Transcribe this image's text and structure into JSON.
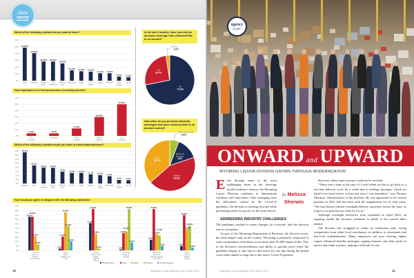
{
  "left_page": {
    "badge": {
      "line1": "data",
      "line2": "CENTER"
    },
    "footer": "StateWays | www.stateways.com | Winter 2022",
    "page_number": "10"
  },
  "colors": {
    "navy": "#1c2a4f",
    "red": "#c8202f",
    "gold": "#f0a818",
    "green": "#a6c43a",
    "teal": "#3aa7c8",
    "highlight": "#f6ea52"
  },
  "chart_data": [
    {
      "id": "c1",
      "type": "bar",
      "title": "Which of the following cocktails do you make at home?",
      "categories": [
        "Other",
        "Margarita",
        "Bloody Mary",
        "Old Fashioned",
        "Whiskey Sour",
        "Manhattan",
        "Mojito",
        "Dry Martini",
        "Daiquiri",
        "Mudslide",
        "Piña Colada",
        "Mai Tai"
      ],
      "values": [
        48.8,
        40.6,
        28.3,
        28.3,
        25.5,
        15.2,
        14.0,
        13.4,
        11.0,
        11.0,
        6.1,
        5.1
      ],
      "labels": [
        "48.80%",
        "40.60%",
        "28.30%",
        "28.30%",
        "25.50%",
        "15.20%",
        "14.00%",
        "13.40%",
        "11.00%",
        "11.00%",
        "6.10%",
        "5.10%"
      ],
      "ylim": [
        0,
        60
      ],
      "ytick_step": 10,
      "yticks": [
        "0%",
        "10%",
        "20%",
        "30%",
        "40%",
        "50%",
        "60%"
      ],
      "color": "#1c2a4f",
      "grid": true
    },
    {
      "id": "c2",
      "type": "bar",
      "title": "How important is it to feel buzzed when consuming alcohol?",
      "categories": [
        "Very Important",
        "Important",
        "Fairly Important",
        "Slightly Important",
        "Not Important"
      ],
      "values": [
        4.0,
        4.0,
        11.8,
        29.8,
        50.0
      ],
      "labels": [
        "4.00%",
        "4.00%",
        "11.80%",
        "29.80%",
        "50.00%"
      ],
      "ylim": [
        0,
        60
      ],
      "ytick_step": 10,
      "yticks": [
        "0%",
        "10%",
        "20%",
        "30%",
        "40%",
        "50%",
        "60%"
      ],
      "color": "#c8202f",
      "grid": true
    },
    {
      "id": "c3",
      "type": "bar",
      "title": "Which of the following cocktails would you order at a bar/restaurant/venue?",
      "categories": [
        "Margarita",
        "Other",
        "Old Fashioned",
        "Bloody Mary",
        "Whiskey Sour",
        "Martini",
        "Mojito",
        "Daiquiri",
        "Piña Colada",
        "Manhattan",
        "Dry Martini",
        "Mai Tai"
      ],
      "values": [
        38.5,
        22.3,
        19.6,
        19.4,
        14.6,
        13.0,
        13.0,
        11.3,
        10.3,
        9.0,
        4.3,
        4.0
      ],
      "labels": [
        "38.5%",
        "22.3%",
        "19.6%",
        "19.4%",
        "14.6%",
        "13.0%",
        "13.0%",
        "11.3%",
        "10.3%",
        "9.0%",
        "4.3%",
        "4.0%"
      ],
      "ylim": [
        0,
        40
      ],
      "ytick_step": 5,
      "yticks": [
        "0%",
        "5%",
        "10%",
        "15%",
        "20%",
        "25%",
        "30%",
        "35%",
        "40%"
      ],
      "color": "#1c2a4f",
      "grid": true
    },
    {
      "id": "c4",
      "type": "grouped-bar",
      "title": "How would you agree or disagree with the following statements:",
      "categories": [
        "I tend to track my alcohol consumption",
        "I prefer lighter alcohol in my drinks",
        "I tend to choose drinks without negative effects",
        "I don't like hangover feelings",
        "I don't care about the calories/nutrients in my drinks",
        "I like to stick to familiar brands"
      ],
      "series": [
        {
          "name": "Strongly Agree",
          "color": "#1c2a4f",
          "values": [
            38.0,
            2.0,
            31.0,
            1.0,
            12.0,
            5.0
          ],
          "labels": [
            "38.00%",
            "2.00%",
            "31.00%",
            "1.00%",
            "12.00%",
            "5.00%"
          ]
        },
        {
          "name": "Agree",
          "color": "#c8202f",
          "values": [
            38.0,
            15.6,
            47.0,
            19.6,
            46.8,
            40.0
          ],
          "labels": [
            "38.00%",
            "15.60%",
            "47.00%",
            "19.60%",
            "46.80%",
            "40.00%"
          ]
        },
        {
          "name": "Neither",
          "color": "#f0a818",
          "values": [
            16.0,
            43.3,
            19.0,
            21.0,
            18.2,
            24.0
          ],
          "labels": [
            "16.00%",
            "43.30%",
            "19.00%",
            "21.00%",
            "18.20%",
            "24.00%"
          ]
        },
        {
          "name": "Disagree",
          "color": "#a6c43a",
          "values": [
            7.0,
            27.5,
            2.0,
            46.8,
            17.0,
            28.0
          ],
          "labels": [
            "7.00%",
            "27.50%",
            "2.00%",
            "46.80%",
            "17.00%",
            "28.00%"
          ]
        },
        {
          "name": "Strongly Disagree",
          "color": "#3aa7c8",
          "values": [
            0,
            10.3,
            0,
            9.0,
            5.2,
            3.0
          ],
          "labels": [
            "",
            "10.30%",
            "",
            "9.00%",
            "5.20%",
            "3.00%"
          ]
        }
      ],
      "ylim": [
        0,
        50
      ],
      "ytick_step": 5,
      "yticks": [
        "0%",
        "5%",
        "10%",
        "15%",
        "20%",
        "25%",
        "30%",
        "35%",
        "40%",
        "45%",
        "50%"
      ],
      "legend": "bottom",
      "grid": true
    },
    {
      "id": "p1",
      "type": "pie",
      "title": "In the last 3 months, have you tried an alcoholic beverage that contained little to no alcohol?",
      "slices": [
        {
          "name": "No",
          "value": 71.8,
          "label": "71.8%",
          "color": "#1c2a4f"
        },
        {
          "name": "Yes",
          "value": 25.7,
          "label": "25.7%",
          "color": "#c8202f"
        },
        {
          "name": "Unsure",
          "value": 2.5,
          "label": "2.5%",
          "color": "#f0a818"
        }
      ]
    },
    {
      "id": "p2",
      "type": "pie",
      "title": "How often do you purchase alcoholic beverages that have relatively little to no alcohol content?",
      "slices": [
        {
          "name": "Most of the time",
          "value": 5.8,
          "label": "5.8%",
          "color": "#a6c43a"
        },
        {
          "name": "Some of the time",
          "value": 14.0,
          "label": "14%",
          "color": "#1c2a4f"
        },
        {
          "name": "Seldom",
          "value": 43.8,
          "label": "43.8%",
          "color": "#c8202f"
        },
        {
          "name": "Never",
          "value": 36.4,
          "label": "36.4%",
          "color": "#f0a818"
        }
      ]
    }
  ],
  "right_page": {
    "agency_badge": {
      "line1": "agency",
      "line2": "profile"
    },
    "photo_credit": "Photo by Lorelle Reid Photography",
    "headline": {
      "word1": "ONWARD",
      "and": "and",
      "word2": "UPWARD"
    },
    "subtitle": "WYOMING LIQUOR DIVISION GROWS THROUGH MODERNIZATION",
    "byline": {
      "by": "by",
      "first": "Melissa",
      "last": "Sherwin"
    },
    "article": {
      "drop_cap": "E",
      "intro": "ven through some of the most challenging times in the beverage alcohol industry's history, the Wyoming Liquor Division continues to demonstrate resilience and innovation. After emerging from the difficulties caused by the Covid-19 pandemic, the division is moving forward while positioning itself for success in the years ahead.",
      "section_heading": "ADDRESSING INDUSTRY CHALLENGES",
      "p1": "The pandemic resulted in many changes for everyone, and the division was no exception.",
      "p2": "As part of the Wyoming Department of Revenue, the division serves the tenth largest state in the country. Wyoming is primarily composed of rural communities stretching across more than 95,000 square miles. Due to the division's resourcefulness and ability to quickly pivot when the pandemic began, it only had to shut down for one day during the health crisis when unable to ship due to the state's Covid-19 policies.",
      "p3": "However, other repercussions could not be avoided.",
      "p4": "“There was a time at the start of Covid when we had to go back to a two-day delivery cycle for a while due to staffing shortages, which we hadn't ever done before, at least not since I can remember,” says Thomas Montoya, Administrator of the division. He was appointed to his current position in 2021 and has been with the organization for 31 total years. “We had always offered overnight delivery anywhere across the state, as long as you placed your order by 9 a.m.”",
      "p5": "Although overnight deliveries were reinstated in April 2022, an ongoing hurdle the division continues to battle is the current labor market.",
      "p6": "The division has struggled to retain its warehouse staff, facing competition from other local warehouses in addition to restaurants and fast-food establishments. Many employers are now offering higher wages, enhanced benefits packages, signing bonuses and other perks to attract and retain workers, making it difficult for the"
    },
    "footer": "StateWays | www.stateways.com | Winter 2022",
    "page_number": "11"
  }
}
